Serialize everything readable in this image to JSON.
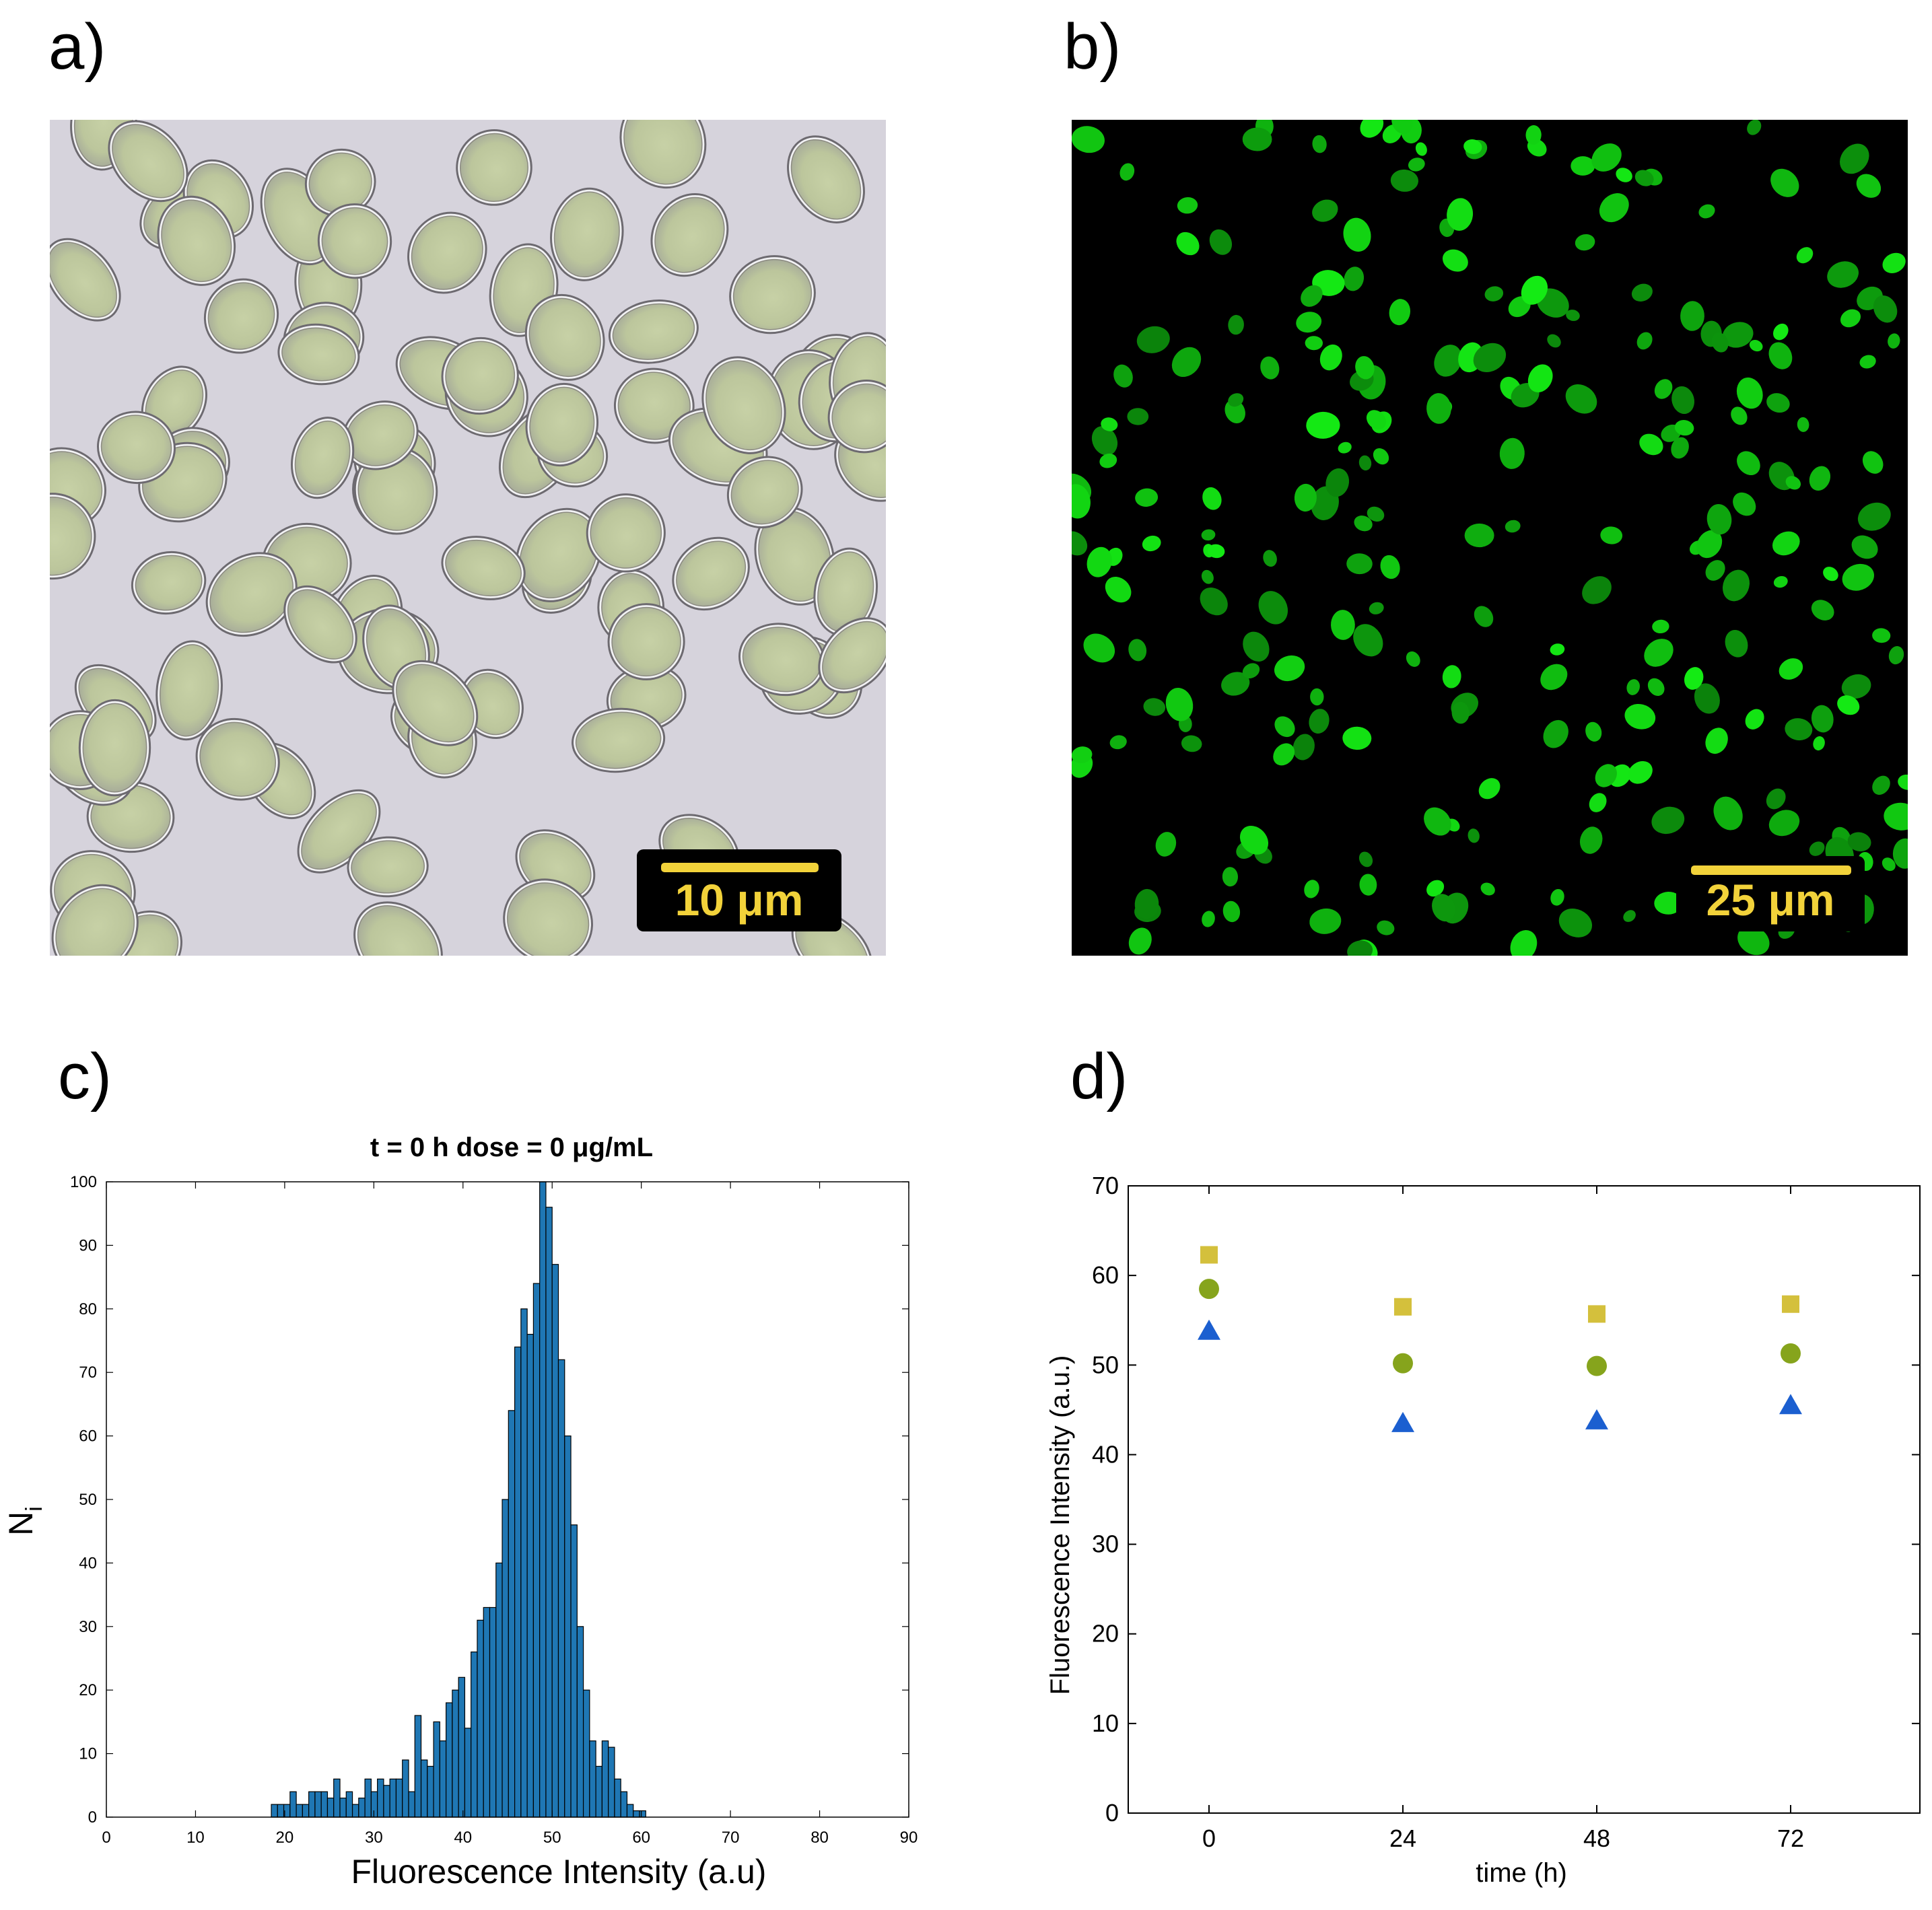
{
  "panels": {
    "a": {
      "label": "a)",
      "scale_bar": "10 μm"
    },
    "b": {
      "label": "b)",
      "scale_bar": "25 μm"
    },
    "c": {
      "label": "c)"
    },
    "d": {
      "label": "d)"
    }
  },
  "colors": {
    "histogram_bar": "#1f77b4",
    "bar_edge": "#000000",
    "scale_bar": "#f2d23a",
    "brightfield_bg": "#d6d3dc",
    "fluorescence_bg": "#000000",
    "fluorescence_cell": "#1eea1e",
    "series_square": "#d4c03c",
    "series_circle": "#86a41c",
    "series_triangle": "#1b5fd0"
  },
  "chart_data": [
    {
      "type": "bar",
      "title": "t = 0 h dose = 0 μg/mL",
      "xlabel": "Fluorescence Intensity (a.u)",
      "ylabel": "N",
      "ylabel_sub": "i",
      "xlim": [
        0,
        90
      ],
      "ylim": [
        0,
        100
      ],
      "xticks": [
        0,
        10,
        20,
        30,
        40,
        50,
        60,
        70,
        80,
        90
      ],
      "yticks": [
        0,
        10,
        20,
        30,
        40,
        50,
        60,
        70,
        80,
        90,
        100
      ],
      "grid": false,
      "bin_width": 0.7,
      "bin_start": 18.5,
      "values": [
        2,
        2,
        2,
        4,
        2,
        2,
        4,
        4,
        4,
        3,
        6,
        3,
        4,
        2,
        3,
        6,
        4,
        6,
        5,
        6,
        6,
        9,
        4,
        16,
        9,
        8,
        15,
        12,
        18,
        20,
        22,
        14,
        26,
        31,
        33,
        33,
        40,
        50,
        64,
        74,
        80,
        76,
        84,
        100,
        96,
        87,
        72,
        60,
        46,
        30,
        20,
        12,
        8,
        12,
        11,
        6,
        4,
        2,
        1,
        1
      ]
    },
    {
      "type": "scatter",
      "xlabel": "time (h)",
      "ylabel": "Fluorescence Intensity (a.u.)",
      "xlim": [
        -10,
        88
      ],
      "ylim": [
        0,
        70
      ],
      "xticks": [
        0,
        24,
        48,
        72
      ],
      "yticks": [
        0,
        10,
        20,
        30,
        40,
        50,
        60,
        70
      ],
      "x": [
        0,
        24,
        48,
        72
      ],
      "series": [
        {
          "marker": "square",
          "color": "#d4c03c",
          "values": [
            62.3,
            56.5,
            55.7,
            56.8
          ]
        },
        {
          "marker": "circle",
          "color": "#86a41c",
          "values": [
            58.5,
            50.2,
            49.9,
            51.3
          ]
        },
        {
          "marker": "triangle",
          "color": "#1b5fd0",
          "values": [
            53.8,
            43.5,
            43.8,
            45.5
          ]
        }
      ]
    }
  ]
}
